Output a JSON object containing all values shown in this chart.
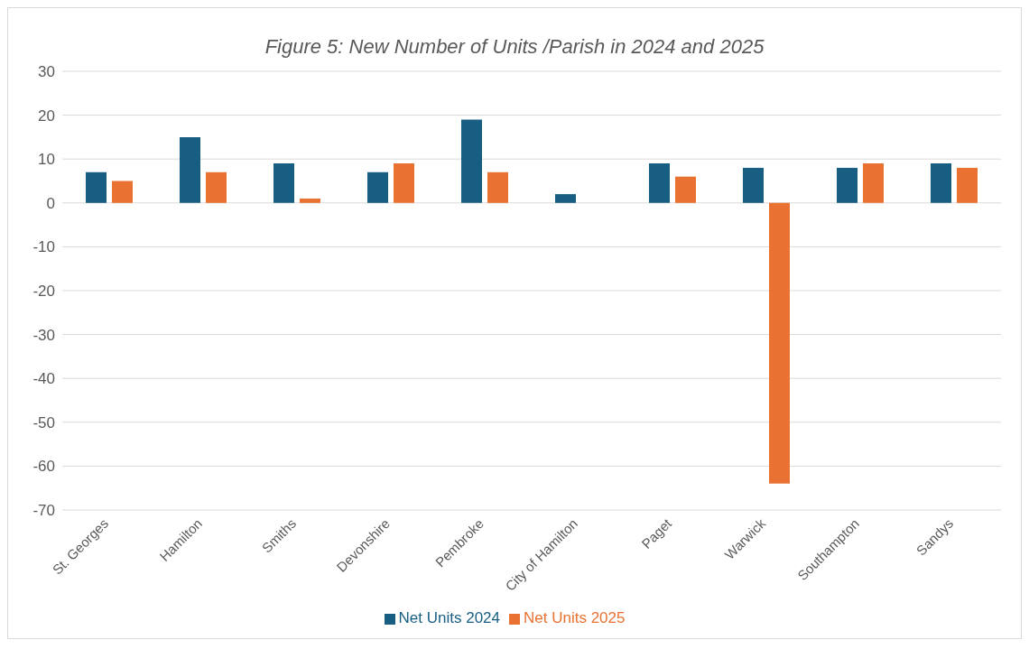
{
  "chart_data": {
    "type": "bar",
    "title": "Figure 5: New Number of Units /Parish in 2024 and 2025",
    "categories": [
      "St. Georges",
      "Hamilton",
      "Smiths",
      "Devonshire",
      "Pembroke",
      "City of Hamilton",
      "Paget",
      "Warwick",
      "Southampton",
      "Sandys"
    ],
    "series": [
      {
        "name": "Net Units 2024",
        "color": "#175e82",
        "values": [
          7,
          15,
          9,
          7,
          19,
          2,
          9,
          8,
          8,
          9
        ]
      },
      {
        "name": "Net Units 2025",
        "color": "#e97132",
        "values": [
          5,
          7,
          1,
          9,
          7,
          null,
          6,
          -64,
          9,
          8
        ]
      }
    ],
    "ylim": [
      -70,
      30
    ],
    "yticks": [
      -70,
      -60,
      -50,
      -40,
      -30,
      -20,
      -10,
      0,
      10,
      20,
      30
    ],
    "grid": "y",
    "legend": "bottom"
  }
}
